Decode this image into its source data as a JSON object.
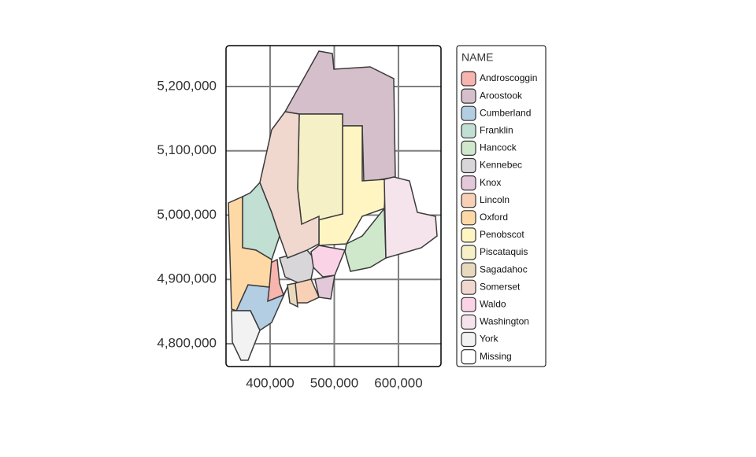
{
  "chart_data": {
    "type": "map",
    "legend_title": "NAME",
    "categories": [
      "Androscoggin",
      "Aroostook",
      "Cumberland",
      "Franklin",
      "Hancock",
      "Kennebec",
      "Knox",
      "Lincoln",
      "Oxford",
      "Penobscot",
      "Piscataquis",
      "Sagadahoc",
      "Somerset",
      "Waldo",
      "Washington",
      "York",
      "Missing"
    ],
    "colors": [
      "#f8b4ae",
      "#d4bfcb",
      "#b3cde3",
      "#c2dfd3",
      "#cfe8cc",
      "#d9d6d9",
      "#e2c8d9",
      "#f7d0b5",
      "#fed9a6",
      "#fff5c2",
      "#f5f0c6",
      "#e8d9bc",
      "#f0d8cf",
      "#fbd3e6",
      "#f6e4ec",
      "#f2f2f2",
      "#ffffff"
    ],
    "xlim": [
      331300,
      666300
    ],
    "ylim": [
      4764500,
      5263600
    ],
    "xticks": [
      {
        "value": 400000,
        "label": "400,000"
      },
      {
        "value": 500000,
        "label": "500,000"
      },
      {
        "value": 600000,
        "label": "600,000"
      }
    ],
    "yticks": [
      {
        "value": 4800000,
        "label": "4,800,000"
      },
      {
        "value": 4900000,
        "label": "4,900,000"
      },
      {
        "value": 5000000,
        "label": "5,000,000"
      },
      {
        "value": 5100000,
        "label": "5,100,000"
      },
      {
        "value": 5200000,
        "label": "5,200,000"
      }
    ],
    "grid": true
  }
}
